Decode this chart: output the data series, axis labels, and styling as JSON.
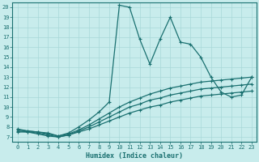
{
  "title": "",
  "xlabel": "Humidex (Indice chaleur)",
  "ylabel": "",
  "bg_color": "#c8ecec",
  "grid_color": "#a8d8d8",
  "line_color": "#1a7070",
  "xlim": [
    -0.5,
    23.5
  ],
  "ylim": [
    6.5,
    20.5
  ],
  "xticks": [
    0,
    1,
    2,
    3,
    4,
    5,
    6,
    7,
    8,
    9,
    10,
    11,
    12,
    13,
    14,
    15,
    16,
    17,
    18,
    19,
    20,
    21,
    22,
    23
  ],
  "yticks": [
    7,
    8,
    9,
    10,
    11,
    12,
    13,
    14,
    15,
    16,
    17,
    18,
    19,
    20
  ],
  "lines": [
    {
      "x": [
        0,
        1,
        2,
        3,
        4,
        5,
        6,
        7,
        8,
        9,
        10,
        11,
        12,
        13,
        14,
        15,
        16,
        17,
        18,
        19,
        20,
        21,
        22,
        23
      ],
      "y": [
        7.5,
        7.5,
        7.3,
        7.1,
        7.0,
        7.2,
        7.5,
        7.8,
        8.2,
        8.6,
        9.0,
        9.4,
        9.7,
        10.0,
        10.2,
        10.5,
        10.7,
        10.9,
        11.1,
        11.2,
        11.3,
        11.4,
        11.5,
        11.6
      ]
    },
    {
      "x": [
        0,
        1,
        2,
        3,
        4,
        5,
        6,
        7,
        8,
        9,
        10,
        11,
        12,
        13,
        14,
        15,
        16,
        17,
        18,
        19,
        20,
        21,
        22,
        23
      ],
      "y": [
        7.6,
        7.5,
        7.4,
        7.2,
        7.0,
        7.2,
        7.6,
        8.0,
        8.5,
        9.0,
        9.5,
        10.0,
        10.3,
        10.7,
        10.9,
        11.2,
        11.4,
        11.6,
        11.8,
        11.9,
        12.0,
        12.1,
        12.2,
        12.3
      ]
    },
    {
      "x": [
        0,
        1,
        2,
        3,
        4,
        5,
        6,
        7,
        8,
        9,
        10,
        11,
        12,
        13,
        14,
        15,
        16,
        17,
        18,
        19,
        20,
        21,
        22,
        23
      ],
      "y": [
        7.7,
        7.6,
        7.5,
        7.3,
        7.1,
        7.3,
        7.7,
        8.2,
        8.8,
        9.4,
        10.0,
        10.5,
        10.9,
        11.3,
        11.6,
        11.9,
        12.1,
        12.3,
        12.5,
        12.6,
        12.7,
        12.8,
        12.9,
        13.0
      ]
    },
    {
      "x": [
        0,
        1,
        2,
        3,
        4,
        5,
        6,
        7,
        8,
        9,
        10,
        11,
        12,
        13,
        14,
        15,
        16,
        17,
        18,
        19,
        20,
        21,
        22,
        23
      ],
      "y": [
        7.8,
        7.6,
        7.5,
        7.4,
        7.1,
        7.4,
        8.0,
        8.7,
        9.5,
        10.5,
        20.2,
        20.0,
        16.8,
        14.3,
        16.8,
        19.0,
        16.5,
        16.3,
        15.0,
        13.0,
        11.5,
        11.0,
        11.2,
        13.0
      ]
    }
  ],
  "marker_size": 2.5,
  "line_width": 0.9,
  "font_color": "#1a7070",
  "font_size_tick": 5,
  "font_size_xlabel": 6
}
